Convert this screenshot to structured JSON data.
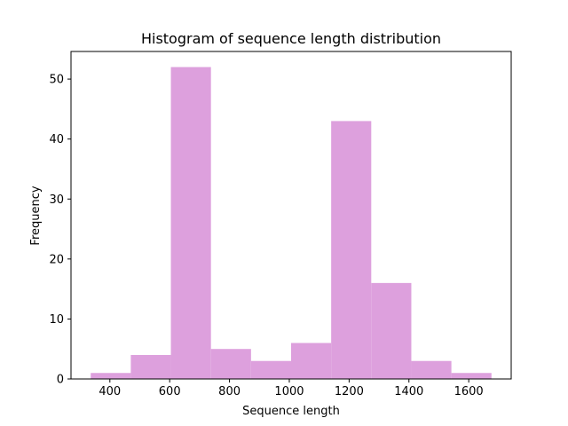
{
  "chart_data": {
    "type": "bar",
    "title": "Histogram of sequence length distribution",
    "xlabel": "Sequence length",
    "ylabel": "Frequency",
    "bin_edges": [
      336,
      470,
      604,
      738,
      872,
      1006,
      1140,
      1274,
      1408,
      1542,
      1676
    ],
    "values": [
      1,
      4,
      52,
      5,
      3,
      6,
      43,
      16,
      3,
      1
    ],
    "xlim": [
      270,
      1742
    ],
    "ylim": [
      0,
      54.6
    ],
    "x_ticks": [
      400,
      600,
      800,
      1000,
      1200,
      1400,
      1600
    ],
    "x_tick_labels": [
      "400",
      "600",
      "800",
      "1000",
      "1200",
      "1400",
      "1600"
    ],
    "y_ticks": [
      0,
      10,
      20,
      30,
      40,
      50
    ],
    "y_tick_labels": [
      "0",
      "10",
      "20",
      "30",
      "40",
      "50"
    ],
    "bar_color": "#dda0dd",
    "grid": false
  }
}
